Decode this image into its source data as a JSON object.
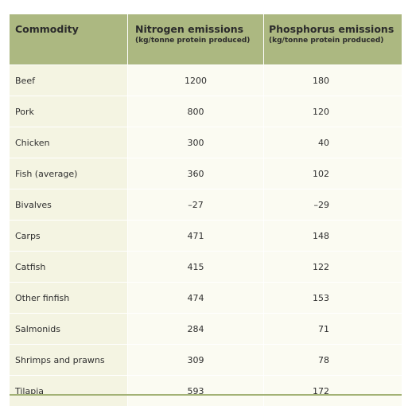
{
  "header": {
    "commodity": "Commodity",
    "nitrogen_title": "Nitrogen emissions",
    "nitrogen_unit": "(kg/tonne protein produced)",
    "phosphorus_title": "Phosphorus emissions",
    "phosphorus_unit": "(kg/tonne protein produced)"
  },
  "rows": [
    {
      "commodity": "Beef",
      "nitrogen": "1200",
      "phosphorus": "180"
    },
    {
      "commodity": "Pork",
      "nitrogen": "800",
      "phosphorus": "120"
    },
    {
      "commodity": "Chicken",
      "nitrogen": "300",
      "phosphorus": "40"
    },
    {
      "commodity": "Fish (average)",
      "nitrogen": "360",
      "phosphorus": "102"
    },
    {
      "commodity": "Bivalves",
      "nitrogen": "–27",
      "phosphorus": "–29"
    },
    {
      "commodity": "Carps",
      "nitrogen": "471",
      "phosphorus": "148"
    },
    {
      "commodity": "Catfish",
      "nitrogen": "415",
      "phosphorus": "122"
    },
    {
      "commodity": "Other finfish",
      "nitrogen": "474",
      "phosphorus": "153"
    },
    {
      "commodity": "Salmonids",
      "nitrogen": "284",
      "phosphorus": "71"
    },
    {
      "commodity": "Shrimps and prawns",
      "nitrogen": "309",
      "phosphorus": "78"
    },
    {
      "commodity": "Tilapia",
      "nitrogen": "593",
      "phosphorus": "172"
    }
  ],
  "colors": {
    "header_bg": "#acb881",
    "first_col_bg": "#f4f4e2",
    "data_bg": "#fbfbf2",
    "rule": "#a3b276"
  }
}
